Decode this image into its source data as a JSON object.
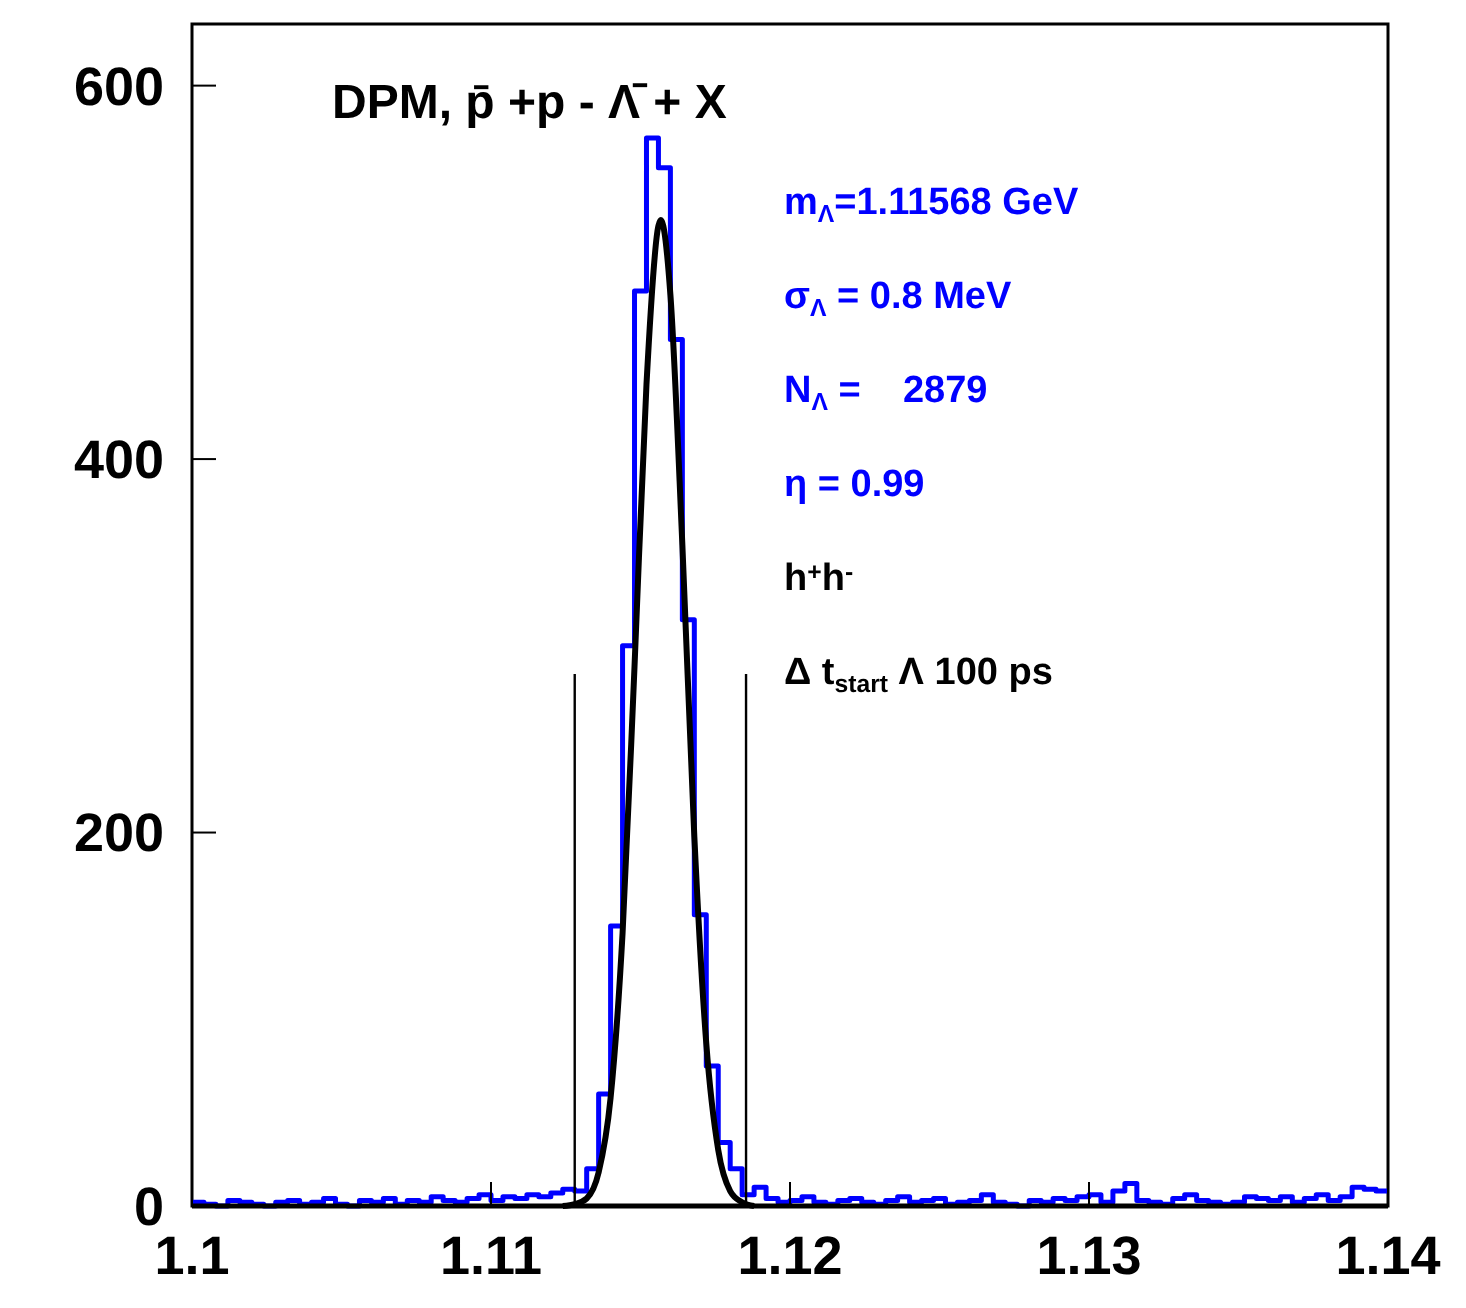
{
  "chart_data": {
    "type": "histogram",
    "title": "DPM, p̄ +p - Λ̄ + X",
    "xlim": [
      1.1,
      1.14
    ],
    "xticks": [
      {
        "value": 1.1,
        "label": "1.1"
      },
      {
        "value": 1.11,
        "label": "1.11"
      },
      {
        "value": 1.12,
        "label": "1.12"
      },
      {
        "value": 1.13,
        "label": "1.13"
      },
      {
        "value": 1.14,
        "label": "1.14"
      }
    ],
    "ylim": [
      0,
      633
    ],
    "yticks": [
      0,
      200,
      400,
      600
    ],
    "series": [
      {
        "color": "#0000ff",
        "bins": [
          1.1,
          1.1004,
          1.1008,
          1.1012,
          1.1016,
          1.102,
          1.1024,
          1.1028,
          1.1032,
          1.1036,
          1.104,
          1.1044,
          1.1048,
          1.1052,
          1.1056,
          1.106,
          1.1064,
          1.1068,
          1.1072,
          1.1076,
          1.108,
          1.1084,
          1.1088,
          1.1092,
          1.1096,
          1.11,
          1.1104,
          1.1108,
          1.1112,
          1.1116,
          1.112,
          1.1124,
          1.1128,
          1.1132,
          1.1136,
          1.114,
          1.1144,
          1.1148,
          1.1152,
          1.1156,
          1.116,
          1.1164,
          1.1168,
          1.1172,
          1.1176,
          1.118,
          1.1184,
          1.1188,
          1.1192,
          1.1196,
          1.12,
          1.1204,
          1.1208,
          1.1212,
          1.1216,
          1.122,
          1.1224,
          1.1228,
          1.1232,
          1.1236,
          1.124,
          1.1244,
          1.1248,
          1.1252,
          1.1256,
          1.126,
          1.1264,
          1.1268,
          1.1272,
          1.1276,
          1.128,
          1.1284,
          1.1288,
          1.1292,
          1.1296,
          1.13,
          1.1304,
          1.1308,
          1.1312,
          1.1316,
          1.132,
          1.1324,
          1.1328,
          1.1332,
          1.1336,
          1.134,
          1.1344,
          1.1348,
          1.1352,
          1.1356,
          1.136,
          1.1364,
          1.1368,
          1.1372,
          1.1376,
          1.138,
          1.1384,
          1.1388,
          1.1392,
          1.1396,
          1.14
        ],
        "values": [
          2,
          1,
          0,
          3,
          2,
          1,
          0,
          2,
          3,
          1,
          2,
          4,
          1,
          0,
          3,
          2,
          4,
          1,
          3,
          2,
          5,
          3,
          2,
          4,
          6,
          3,
          5,
          4,
          6,
          5,
          7,
          9,
          8,
          20,
          60,
          150,
          300,
          490,
          572,
          556,
          464,
          314,
          156,
          75,
          34,
          20,
          6,
          10,
          4,
          2,
          3,
          5,
          2,
          1,
          3,
          4,
          2,
          1,
          3,
          5,
          2,
          3,
          4,
          1,
          2,
          3,
          6,
          2,
          1,
          0,
          3,
          2,
          4,
          3,
          5,
          6,
          2,
          8,
          12,
          3,
          2,
          1,
          4,
          6,
          3,
          2,
          1,
          2,
          5,
          4,
          3,
          5,
          2,
          4,
          6,
          3,
          5,
          10,
          9,
          8
        ]
      },
      {
        "type": "line",
        "color": "#000000",
        "x": [
          1.1124,
          1.1128,
          1.1132,
          1.1136,
          1.114,
          1.1144,
          1.1148,
          1.1152,
          1.1156,
          1.11568,
          1.116,
          1.1164,
          1.1168,
          1.1172,
          1.1176,
          1.118,
          1.1184,
          1.1188
        ],
        "values": [
          0,
          1,
          4,
          18,
          58,
          146,
          289,
          440,
          525,
          528,
          488,
          354,
          198,
          87,
          30,
          8,
          2,
          0
        ]
      }
    ],
    "ref_lines": [
      {
        "axis": "x",
        "value": 1.1128,
        "color": "#000000"
      },
      {
        "axis": "x",
        "value": 1.11853,
        "color": "#000000"
      }
    ],
    "annotations": [
      "m$_{Λ}$=1.11568 GeV",
      "σ$_{Λ}$ = 0.8 MeV",
      "N$_{Λ}$ =    2879",
      "η = 0.99",
      "h$^{+}$h$^{-}$",
      "Δ t$_{start}$ Λ 100 ps"
    ]
  }
}
